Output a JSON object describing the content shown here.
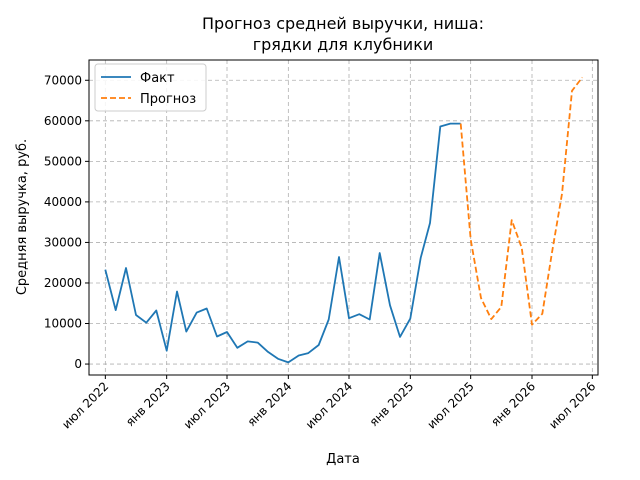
{
  "chart_data": {
    "type": "line",
    "title_line1": "Прогноз средней выручки, ниша:",
    "title_line2": "грядки для клубники",
    "xlabel": "Дата",
    "ylabel": "Средняя выручка, руб.",
    "ylim": [
      -2700,
      75000
    ],
    "xlim": [
      "2022-05-13",
      "2026-07-18"
    ],
    "y_ticks": [
      0,
      10000,
      20000,
      30000,
      40000,
      50000,
      60000,
      70000
    ],
    "y_tick_labels": [
      "0",
      "10000",
      "20000",
      "30000",
      "40000",
      "50000",
      "60000",
      "70000"
    ],
    "x_ticks": [
      "2022-07-01",
      "2023-01-01",
      "2023-07-01",
      "2024-01-01",
      "2024-07-01",
      "2025-01-01",
      "2025-07-01",
      "2026-01-01",
      "2026-07-01"
    ],
    "x_tick_labels": [
      "июл 2022",
      "янв 2023",
      "июл 2023",
      "янв 2024",
      "июл 2024",
      "янв 2025",
      "июл 2025",
      "янв 2026",
      "июл 2026"
    ],
    "grid": true,
    "legend_position": "top-left",
    "series": [
      {
        "name": "Факт",
        "color": "#1f77b4",
        "style": "solid",
        "x": [
          "2022-07-01",
          "2022-08-01",
          "2022-09-01",
          "2022-10-01",
          "2022-11-01",
          "2022-12-01",
          "2023-01-01",
          "2023-02-01",
          "2023-03-01",
          "2023-04-01",
          "2023-05-01",
          "2023-06-01",
          "2023-07-01",
          "2023-08-01",
          "2023-09-01",
          "2023-10-01",
          "2023-11-01",
          "2023-12-01",
          "2024-01-01",
          "2024-02-01",
          "2024-03-01",
          "2024-04-01",
          "2024-05-01",
          "2024-06-01",
          "2024-07-01",
          "2024-08-01",
          "2024-09-01",
          "2024-10-01",
          "2024-11-01",
          "2024-12-01",
          "2025-01-01",
          "2025-02-01",
          "2025-03-01",
          "2025-04-01",
          "2025-05-01",
          "2025-06-01"
        ],
        "y": [
          23300,
          13300,
          23700,
          12100,
          10200,
          13200,
          3300,
          17900,
          8000,
          12700,
          13700,
          6800,
          7900,
          4000,
          5600,
          5300,
          3000,
          1300,
          400,
          2100,
          2700,
          4700,
          11000,
          26400,
          11300,
          12300,
          11000,
          27400,
          14500,
          6700,
          11200,
          26200,
          34800,
          58600,
          59300,
          59300
        ]
      },
      {
        "name": "Прогноз",
        "color": "#ff7f0e",
        "style": "dashed",
        "x": [
          "2025-06-01",
          "2025-07-01",
          "2025-08-01",
          "2025-09-01",
          "2025-10-01",
          "2025-11-01",
          "2025-12-01",
          "2026-01-01",
          "2026-02-01",
          "2026-03-01",
          "2026-04-01",
          "2026-05-01",
          "2026-06-01"
        ],
        "y": [
          59300,
          30700,
          16300,
          11100,
          14100,
          35500,
          28700,
          9700,
          12400,
          27100,
          42000,
          67400,
          70700
        ]
      }
    ]
  }
}
